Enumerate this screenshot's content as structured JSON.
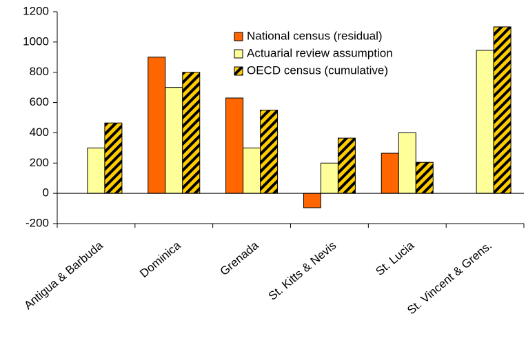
{
  "chart_data": {
    "type": "bar",
    "categories": [
      "Antigua & Barbuda",
      "Dominica",
      "Grenada",
      "St. Kitts & Nevis",
      "St. Lucia",
      "St. Vincent & Grens."
    ],
    "series": [
      {
        "name": "National census (residual)",
        "color": "#ff6600",
        "values": [
          null,
          900,
          630,
          -95,
          265,
          null
        ]
      },
      {
        "name": "Actuarial review assumption",
        "color": "#ffff99",
        "values": [
          300,
          700,
          300,
          200,
          400,
          945
        ]
      },
      {
        "name": "OECD census (cumulative)",
        "color": "#ffcc00",
        "pattern": "hatch",
        "values": [
          465,
          800,
          550,
          365,
          205,
          1100
        ]
      }
    ],
    "ylim": [
      -200,
      1200
    ],
    "yticks": [
      -200,
      0,
      200,
      400,
      600,
      800,
      1000,
      1200
    ],
    "grid": false,
    "legend": "top-right"
  }
}
